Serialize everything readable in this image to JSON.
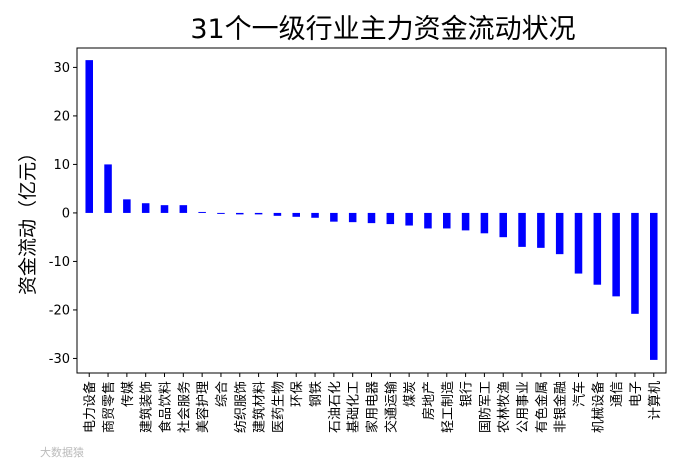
{
  "watermark": "大数据猿",
  "chart_data": {
    "type": "bar",
    "title": "31个一级行业主力资金流动状况",
    "xlabel": "",
    "ylabel": "资金流动（亿元）",
    "ylim": [
      -33,
      34
    ],
    "yticks": [
      30,
      20,
      10,
      0,
      -10,
      -20,
      -30
    ],
    "bar_color": "#0000ff",
    "grid": false,
    "categories": [
      "电力设备",
      "商贸零售",
      "传媒",
      "建筑装饰",
      "食品饮料",
      "社会服务",
      "美容护理",
      "综合",
      "纺织服饰",
      "建筑材料",
      "医药生物",
      "环保",
      "钢铁",
      "石油石化",
      "基础化工",
      "家用电器",
      "交通运输",
      "煤炭",
      "房地产",
      "轻工制造",
      "银行",
      "国防军工",
      "农林牧渔",
      "公用事业",
      "有色金属",
      "非银金融",
      "汽车",
      "机械设备",
      "通信",
      "电子",
      "计算机"
    ],
    "values": [
      31.5,
      10.0,
      2.8,
      2.0,
      1.6,
      1.6,
      0.2,
      -0.2,
      -0.3,
      -0.3,
      -0.6,
      -0.8,
      -1.0,
      -1.8,
      -1.9,
      -2.1,
      -2.3,
      -2.6,
      -3.2,
      -3.2,
      -3.6,
      -4.2,
      -5.0,
      -7.0,
      -7.2,
      -8.5,
      -12.5,
      -14.8,
      -17.2,
      -20.8,
      -30.3
    ]
  }
}
